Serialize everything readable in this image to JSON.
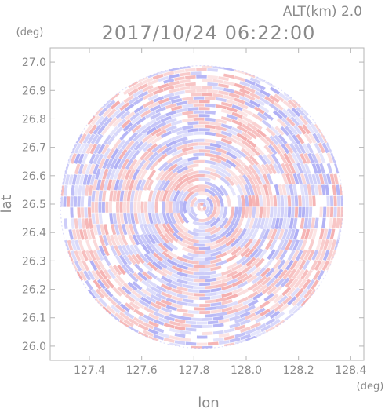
{
  "chart_data": {
    "type": "heatmap",
    "subtype": "polar radar scan (PPI) display",
    "title": "2017/10/24 06:22:00",
    "altitude_label": "ALT(km) 2.0",
    "xlabel": "lon",
    "ylabel": "lat",
    "x_unit": "(deg)",
    "y_unit": "(deg)",
    "xlim": [
      127.25,
      128.45
    ],
    "ylim": [
      25.95,
      27.05
    ],
    "x_ticks": [
      127.4,
      127.6,
      127.8,
      128.0,
      128.2,
      128.4
    ],
    "x_tick_labels": [
      "127.4",
      "127.6",
      "127.8",
      "128.0",
      "128.2",
      "128.4"
    ],
    "y_ticks": [
      26.0,
      26.1,
      26.2,
      26.3,
      26.4,
      26.5,
      26.6,
      26.7,
      26.8,
      26.9,
      27.0
    ],
    "y_tick_labels": [
      "26.0",
      "26.1",
      "26.2",
      "26.3",
      "26.4",
      "26.5",
      "26.6",
      "26.7",
      "26.8",
      "26.9",
      "27.0"
    ],
    "scan_center": {
      "lon": 127.83,
      "lat": 26.49
    },
    "scan_radius_deg": 0.54,
    "colormap": {
      "positive": "#f29a9a",
      "negative": "#9a9af2",
      "zero": "#ffffff"
    },
    "grid": false,
    "legend": "none"
  }
}
